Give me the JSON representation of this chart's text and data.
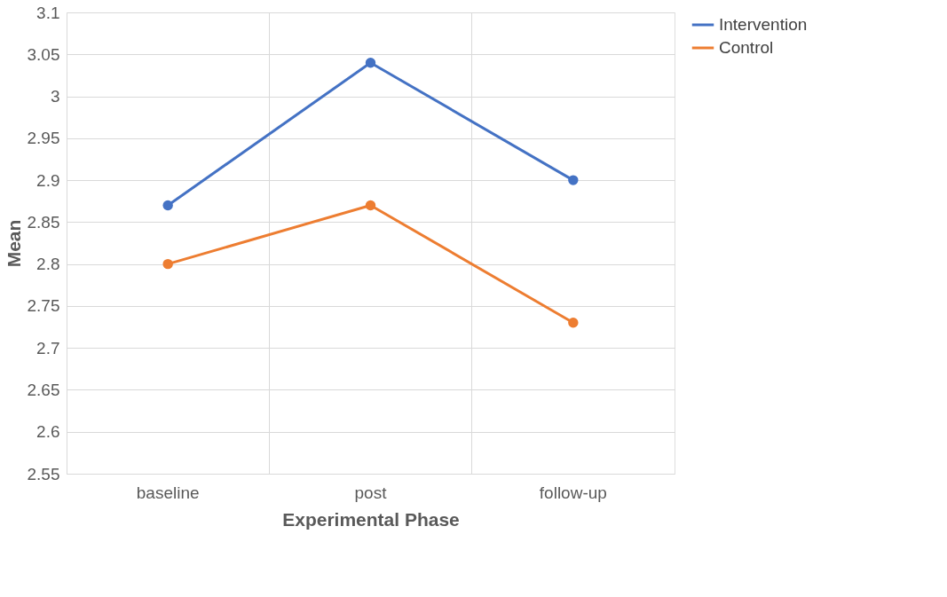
{
  "chart_data": {
    "type": "line",
    "xlabel": "Experimental Phase",
    "ylabel": "Mean",
    "categories": [
      "baseline",
      "post",
      "follow-up"
    ],
    "series": [
      {
        "name": "Intervention",
        "color": "#4472c4",
        "values": [
          2.87,
          3.04,
          2.9
        ]
      },
      {
        "name": "Control",
        "color": "#ed7d31",
        "values": [
          2.8,
          2.87,
          2.73
        ]
      }
    ],
    "ylim": [
      2.55,
      3.1
    ],
    "yticks": [
      2.55,
      2.6,
      2.65,
      2.7,
      2.75,
      2.8,
      2.85,
      2.9,
      2.95,
      3,
      3.05,
      3.1
    ],
    "grid": true,
    "legend": "right",
    "marker": "circle",
    "line_style": "solid"
  }
}
